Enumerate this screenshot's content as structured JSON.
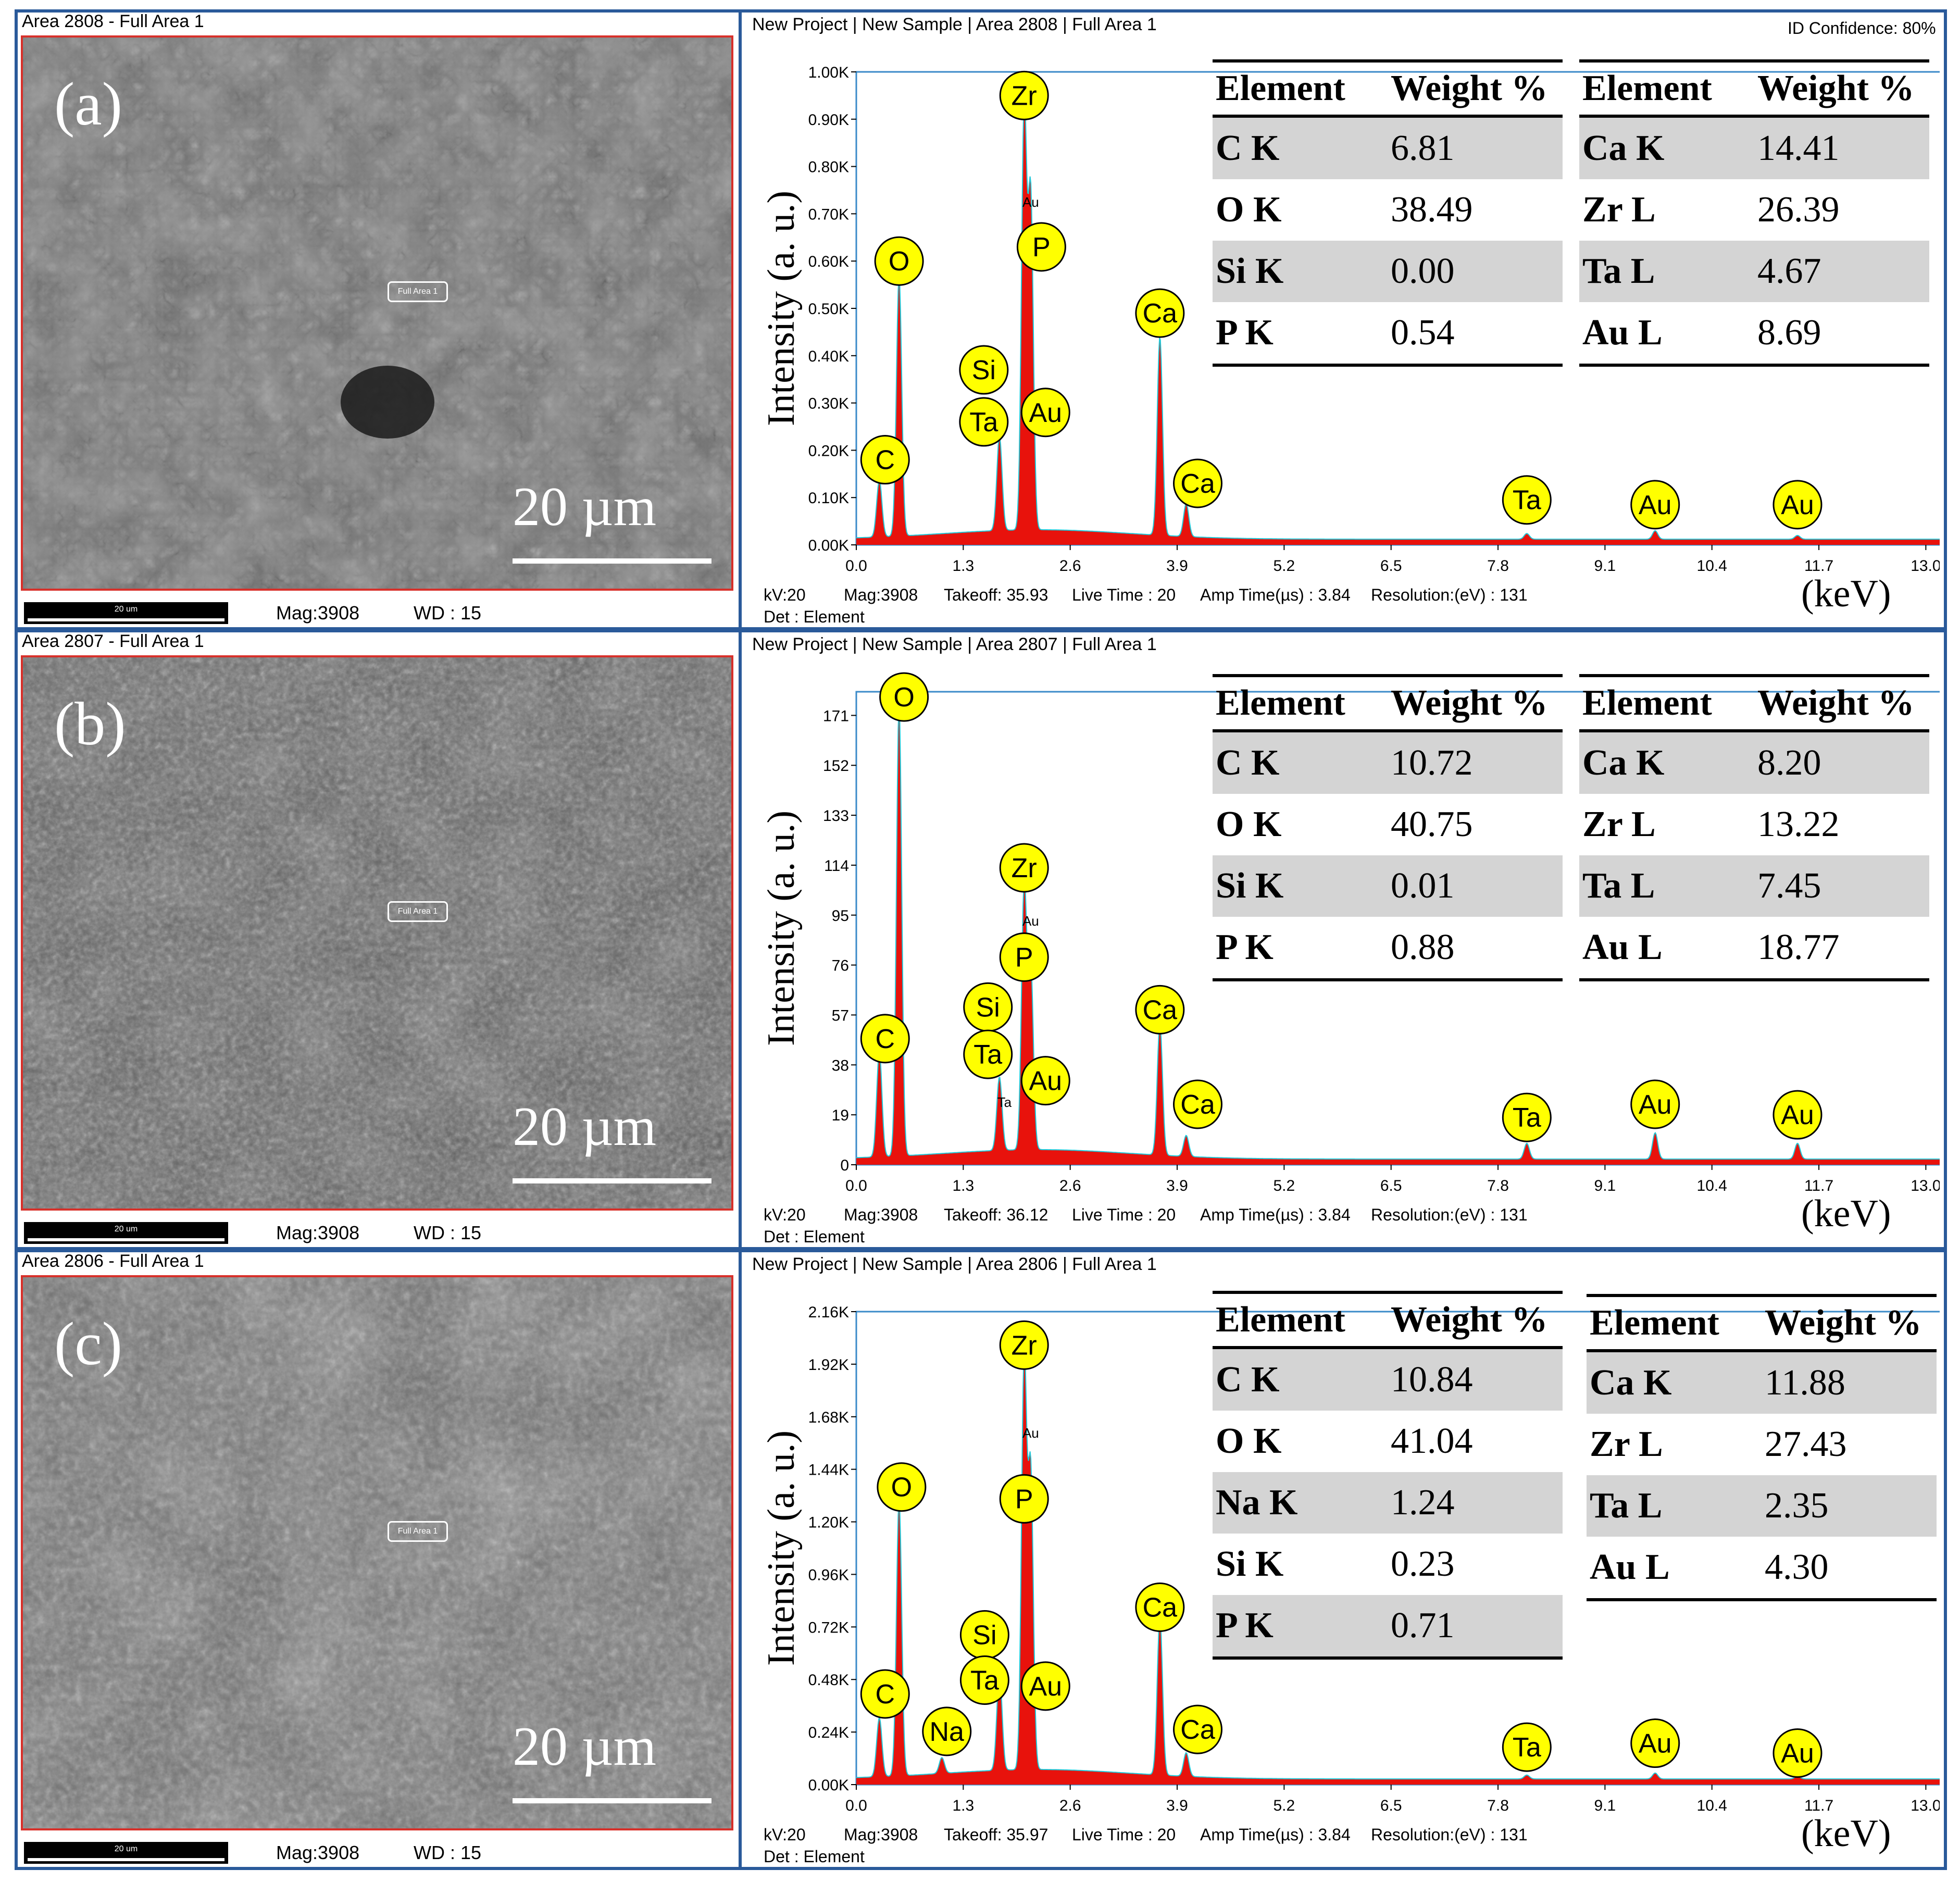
{
  "chart_data": [
    {
      "type": "line",
      "panel": "(a)",
      "sem": {
        "title": "Area 2808 - Full Area 1",
        "area_tag": "Full Area 1",
        "scale_text": "20 µm",
        "mini_bar": "20 um",
        "mag": "Mag:3908",
        "wd": "WD : 15"
      },
      "eds": {
        "title": "New Project | New Sample | Area 2808 | Full Area 1",
        "confidence": "ID Confidence: 80%",
        "ylabel": "Intensity (a. u.)",
        "xlabel": "(keV)",
        "xlim": [
          0,
          13.2
        ],
        "ylim": [
          0,
          1000
        ],
        "y_ticks": [
          "0.00K",
          "0.10K",
          "0.20K",
          "0.30K",
          "0.40K",
          "0.50K",
          "0.60K",
          "0.70K",
          "0.80K",
          "0.90K",
          "1.00K"
        ],
        "x_ticks": [
          "0.0",
          "1.3",
          "2.6",
          "3.9",
          "5.2",
          "6.5",
          "7.8",
          "9.1",
          "10.4",
          "11.7",
          "13.0"
        ],
        "peaks": [
          {
            "kev": 0.28,
            "value": 120
          },
          {
            "kev": 0.52,
            "value": 550
          },
          {
            "kev": 1.74,
            "value": 200
          },
          {
            "kev": 2.04,
            "value": 890
          },
          {
            "kev": 2.12,
            "value": 700
          },
          {
            "kev": 3.69,
            "value": 420
          },
          {
            "kev": 4.01,
            "value": 70
          },
          {
            "kev": 8.15,
            "value": 12
          },
          {
            "kev": 9.71,
            "value": 18
          },
          {
            "kev": 11.44,
            "value": 8
          }
        ],
        "annotations": [
          {
            "label": "Zr",
            "kev": 2.04,
            "value": 950
          },
          {
            "label": "O",
            "kev": 0.52,
            "value": 600
          },
          {
            "label": "P",
            "kev": 2.25,
            "value": 630
          },
          {
            "label": "Ca",
            "kev": 3.69,
            "value": 490
          },
          {
            "label": "Si",
            "kev": 1.55,
            "value": 370
          },
          {
            "label": "Ta",
            "kev": 1.55,
            "value": 260
          },
          {
            "label": "Au",
            "kev": 2.3,
            "value": 280
          },
          {
            "label": "C",
            "kev": 0.35,
            "value": 180
          },
          {
            "label": "Ca",
            "kev": 4.15,
            "value": 130
          },
          {
            "label": "Ta",
            "kev": 8.15,
            "value": 95
          },
          {
            "label": "Au",
            "kev": 9.71,
            "value": 85
          },
          {
            "label": "Au",
            "kev": 11.44,
            "value": 85
          }
        ],
        "small_labels": [
          {
            "label": "Au",
            "kev": 2.12,
            "value": 715
          }
        ],
        "acquisition": [
          "kV:20",
          "Mag:3908",
          "Takeoff: 35.93",
          "Live Time : 20",
          "Amp Time(µs) : 3.84",
          "Resolution:(eV) : 131"
        ],
        "det": "Det : Element"
      },
      "table_headers": [
        "Element",
        "Weight %"
      ],
      "table_left": [
        [
          "C K",
          "6.81"
        ],
        [
          "O K",
          "38.49"
        ],
        [
          "Si K",
          "0.00"
        ],
        [
          "P K",
          "0.54"
        ]
      ],
      "table_right": [
        [
          "Ca K",
          "14.41"
        ],
        [
          "Zr L",
          "26.39"
        ],
        [
          "Ta L",
          "4.67"
        ],
        [
          "Au L",
          "8.69"
        ]
      ]
    },
    {
      "type": "line",
      "panel": "(b)",
      "sem": {
        "title": "Area 2807 - Full Area 1",
        "area_tag": "Full Area 1",
        "scale_text": "20 µm",
        "mini_bar": "20 um",
        "mag": "Mag:3908",
        "wd": "WD : 15"
      },
      "eds": {
        "title": "New Project | New Sample | Area 2807 | Full Area 1",
        "confidence": "",
        "ylabel": "Intensity (a. u.)",
        "xlabel": "(keV)",
        "xlim": [
          0,
          13.2
        ],
        "ylim": [
          0,
          180
        ],
        "y_ticks": [
          "0",
          "19",
          "38",
          "57",
          "76",
          "95",
          "114",
          "133",
          "152",
          "171"
        ],
        "y_tick_values": [
          0,
          19,
          38,
          57,
          76,
          95,
          114,
          133,
          152,
          171
        ],
        "x_ticks": [
          "0.0",
          "1.3",
          "2.6",
          "3.9",
          "5.2",
          "6.5",
          "7.8",
          "9.1",
          "10.4",
          "11.7",
          "13.0"
        ],
        "peaks": [
          {
            "kev": 0.28,
            "value": 40
          },
          {
            "kev": 0.52,
            "value": 172
          },
          {
            "kev": 1.74,
            "value": 28
          },
          {
            "kev": 2.04,
            "value": 100
          },
          {
            "kev": 2.12,
            "value": 70
          },
          {
            "kev": 3.69,
            "value": 50
          },
          {
            "kev": 4.01,
            "value": 8
          },
          {
            "kev": 8.15,
            "value": 6
          },
          {
            "kev": 9.71,
            "value": 10
          },
          {
            "kev": 11.44,
            "value": 6
          }
        ],
        "annotations": [
          {
            "label": "O",
            "kev": 0.58,
            "value": 178
          },
          {
            "label": "Zr",
            "kev": 2.04,
            "value": 113
          },
          {
            "label": "P",
            "kev": 2.04,
            "value": 79
          },
          {
            "label": "Ca",
            "kev": 3.69,
            "value": 59
          },
          {
            "label": "Si",
            "kev": 1.6,
            "value": 60
          },
          {
            "label": "Ta",
            "kev": 1.6,
            "value": 42
          },
          {
            "label": "Au",
            "kev": 2.3,
            "value": 32
          },
          {
            "label": "C",
            "kev": 0.35,
            "value": 48
          },
          {
            "label": "Ca",
            "kev": 4.15,
            "value": 23
          },
          {
            "label": "Ta",
            "kev": 8.15,
            "value": 18
          },
          {
            "label": "Au",
            "kev": 9.71,
            "value": 23
          },
          {
            "label": "Au",
            "kev": 11.44,
            "value": 19
          }
        ],
        "small_labels": [
          {
            "label": "Au",
            "kev": 2.12,
            "value": 91
          },
          {
            "label": "Ta",
            "kev": 1.8,
            "value": 22
          }
        ],
        "acquisition": [
          "kV:20",
          "Mag:3908",
          "Takeoff: 36.12",
          "Live Time : 20",
          "Amp Time(µs) : 3.84",
          "Resolution:(eV) : 131"
        ],
        "det": "Det : Element"
      },
      "table_headers": [
        "Element",
        "Weight %"
      ],
      "table_left": [
        [
          "C K",
          "10.72"
        ],
        [
          "O K",
          "40.75"
        ],
        [
          "Si K",
          "0.01"
        ],
        [
          "P K",
          "0.88"
        ]
      ],
      "table_right": [
        [
          "Ca K",
          "8.20"
        ],
        [
          "Zr L",
          "13.22"
        ],
        [
          "Ta L",
          "7.45"
        ],
        [
          "Au L",
          "18.77"
        ]
      ]
    },
    {
      "type": "line",
      "panel": "(c)",
      "sem": {
        "title": "Area 2806 - Full Area 1",
        "area_tag": "Full Area 1",
        "scale_text": "20 µm",
        "mini_bar": "20 um",
        "mag": "Mag:3908",
        "wd": "WD : 15"
      },
      "eds": {
        "title": "New Project | New Sample | Area 2806 | Full Area 1",
        "confidence": "",
        "ylabel": "Intensity (a. u.)",
        "xlabel": "(keV)",
        "xlim": [
          0,
          13.2
        ],
        "ylim": [
          0,
          2400
        ],
        "y_ticks": [
          "0.00K",
          "0.24K",
          "0.48K",
          "0.72K",
          "0.96K",
          "1.20K",
          "1.44K",
          "1.68K",
          "1.92K",
          "2.16K"
        ],
        "x_ticks": [
          "0.0",
          "1.3",
          "2.6",
          "3.9",
          "5.2",
          "6.5",
          "7.8",
          "9.1",
          "10.4",
          "11.7",
          "13.0"
        ],
        "peaks": [
          {
            "kev": 0.28,
            "value": 300
          },
          {
            "kev": 0.52,
            "value": 1400
          },
          {
            "kev": 1.04,
            "value": 80
          },
          {
            "kev": 1.74,
            "value": 500
          },
          {
            "kev": 2.04,
            "value": 2080
          },
          {
            "kev": 2.12,
            "value": 1500
          },
          {
            "kev": 3.69,
            "value": 800
          },
          {
            "kev": 4.01,
            "value": 120
          },
          {
            "kev": 8.15,
            "value": 20
          },
          {
            "kev": 9.71,
            "value": 30
          },
          {
            "kev": 11.44,
            "value": 15
          }
        ],
        "annotations": [
          {
            "label": "Zr",
            "kev": 2.04,
            "value": 2230
          },
          {
            "label": "O",
            "kev": 0.55,
            "value": 1510
          },
          {
            "label": "P",
            "kev": 2.04,
            "value": 1450
          },
          {
            "label": "Ca",
            "kev": 3.69,
            "value": 900
          },
          {
            "label": "Si",
            "kev": 1.56,
            "value": 760
          },
          {
            "label": "Ta",
            "kev": 1.56,
            "value": 530
          },
          {
            "label": "Au",
            "kev": 2.3,
            "value": 500
          },
          {
            "label": "C",
            "kev": 0.35,
            "value": 460
          },
          {
            "label": "Na",
            "kev": 1.1,
            "value": 270
          },
          {
            "label": "Ca",
            "kev": 4.15,
            "value": 280
          },
          {
            "label": "Ta",
            "kev": 8.15,
            "value": 190
          },
          {
            "label": "Au",
            "kev": 9.71,
            "value": 210
          },
          {
            "label": "Au",
            "kev": 11.44,
            "value": 160
          }
        ],
        "small_labels": [
          {
            "label": "Au",
            "kev": 2.12,
            "value": 1760
          }
        ],
        "acquisition": [
          "kV:20",
          "Mag:3908",
          "Takeoff: 35.97",
          "Live Time : 20",
          "Amp Time(µs) : 3.84",
          "Resolution:(eV) : 131"
        ],
        "det": "Det : Element"
      },
      "table_headers": [
        "Element",
        "Weight %"
      ],
      "table_left": [
        [
          "C K",
          "10.84"
        ],
        [
          "O K",
          "41.04"
        ],
        [
          "Na K",
          "1.24"
        ],
        [
          "Si K",
          "0.23"
        ],
        [
          "P K",
          "0.71"
        ]
      ],
      "table_right": [
        [
          "Ca K",
          "11.88"
        ],
        [
          "Zr L",
          "27.43"
        ],
        [
          "Ta L",
          "2.35"
        ],
        [
          "Au L",
          "4.30"
        ]
      ]
    }
  ],
  "colors": {
    "frame": "#2a5a9a",
    "sem_border": "#d8302a",
    "spectrum_fill": "#e8120c",
    "spectrum_outline": "#20c8d8",
    "marker_fill": "#ffff00",
    "table_shade": "#d4d4d4"
  }
}
